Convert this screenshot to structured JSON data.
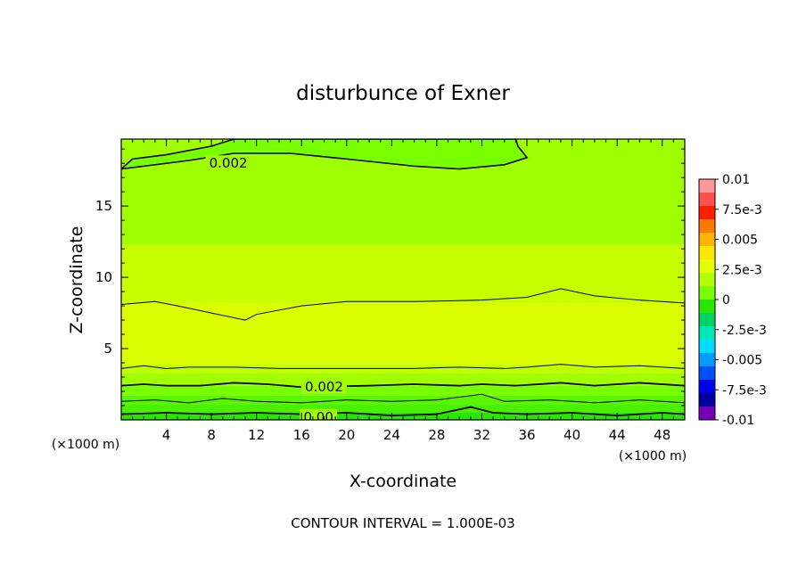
{
  "chart_data": {
    "type": "heatmap",
    "title": "disturbunce of Exner",
    "xlabel": "X-coordinate",
    "ylabel": "Z-coordinate",
    "x_unit_label": "(×1000 m)",
    "y_unit_label": "(×1000 m)",
    "xlim": [
      0,
      50
    ],
    "ylim": [
      0,
      19.7
    ],
    "x_ticks": [
      4,
      8,
      12,
      16,
      20,
      24,
      28,
      32,
      36,
      40,
      44,
      48
    ],
    "x_tick_labels": [
      "4",
      "8",
      "12",
      "16",
      "20",
      "24",
      "28",
      "32",
      "36",
      "40",
      "44",
      "48"
    ],
    "y_ticks": [
      5,
      10,
      15
    ],
    "y_tick_labels": [
      "5",
      "10",
      "15"
    ],
    "footer": "CONTOUR INTERVAL = 1.000E-03",
    "contour_labels": [
      {
        "text": "0.002",
        "x": 9.5,
        "y": 18.0
      },
      {
        "text": "0.002",
        "x": 18.0,
        "y": 2.3
      },
      {
        "text": "0.00",
        "x": 17.5,
        "y": 0.2
      }
    ],
    "colorbar": {
      "labels": [
        "0.01",
        "7.5e-3",
        "0.005",
        "2.5e-3",
        "0",
        "-2.5e-3",
        "-0.005",
        "-7.5e-3",
        "-0.01"
      ],
      "colors": [
        "#ff9898",
        "#ff5050",
        "#ff1e00",
        "#ff7800",
        "#ffb400",
        "#ffe600",
        "#e6ff00",
        "#b4ff00",
        "#78ff00",
        "#28e600",
        "#00d264",
        "#00e6b4",
        "#00dcff",
        "#009cff",
        "#0050ff",
        "#0000e6",
        "#0000a0",
        "#7800b4"
      ]
    },
    "bands": [
      {
        "y_from": 0.0,
        "y_to": 0.55,
        "color": "#28e600"
      },
      {
        "y_from": 0.55,
        "y_to": 1.1,
        "color": "#49f000"
      },
      {
        "y_from": 1.1,
        "y_to": 1.7,
        "color": "#5af500"
      },
      {
        "y_from": 1.7,
        "y_to": 2.4,
        "color": "#78ff00"
      },
      {
        "y_from": 2.4,
        "y_to": 3.3,
        "color": "#a2ff00"
      },
      {
        "y_from": 3.3,
        "y_to": 3.9,
        "color": "#c4ff00"
      },
      {
        "y_from": 3.9,
        "y_to": 8.2,
        "color": "#dcff00"
      },
      {
        "y_from": 8.2,
        "y_to": 12.3,
        "color": "#c8ff00"
      },
      {
        "y_from": 12.3,
        "y_to": 19.7,
        "color": "#a0ff00"
      }
    ],
    "contours": [
      {
        "level": "0.002",
        "points": [
          [
            0,
            8.1
          ],
          [
            3,
            8.3
          ],
          [
            5,
            8.0
          ],
          [
            8,
            7.5
          ],
          [
            11,
            7.0
          ],
          [
            12,
            7.4
          ],
          [
            16,
            8.0
          ],
          [
            20,
            8.3
          ],
          [
            26,
            8.3
          ],
          [
            32,
            8.4
          ],
          [
            36,
            8.6
          ],
          [
            39,
            9.2
          ],
          [
            42,
            8.7
          ],
          [
            46,
            8.4
          ],
          [
            50,
            8.2
          ]
        ]
      },
      {
        "level": "0.002",
        "points": [
          [
            0,
            3.6
          ],
          [
            2,
            3.8
          ],
          [
            4,
            3.6
          ],
          [
            6,
            3.7
          ],
          [
            10,
            3.7
          ],
          [
            14,
            3.6
          ],
          [
            18,
            3.6
          ],
          [
            22,
            3.6
          ],
          [
            26,
            3.6
          ],
          [
            30,
            3.7
          ],
          [
            34,
            3.6
          ],
          [
            36,
            3.7
          ],
          [
            39,
            3.9
          ],
          [
            42,
            3.7
          ],
          [
            46,
            3.8
          ],
          [
            50,
            3.6
          ]
        ]
      },
      {
        "level": "0.002",
        "points": [
          [
            0,
            2.4
          ],
          [
            2,
            2.5
          ],
          [
            4,
            2.4
          ],
          [
            7,
            2.4
          ],
          [
            10,
            2.6
          ],
          [
            13,
            2.5
          ],
          [
            16,
            2.3
          ],
          [
            22,
            2.4
          ],
          [
            26,
            2.5
          ],
          [
            30,
            2.4
          ],
          [
            32,
            2.5
          ],
          [
            35,
            2.4
          ],
          [
            39,
            2.6
          ],
          [
            42,
            2.4
          ],
          [
            46,
            2.6
          ],
          [
            50,
            2.4
          ]
        ]
      },
      {
        "level": "0.002",
        "points": [
          [
            0,
            1.3
          ],
          [
            3,
            1.4
          ],
          [
            6,
            1.2
          ],
          [
            9,
            1.5
          ],
          [
            12,
            1.3
          ],
          [
            16,
            1.2
          ],
          [
            20,
            1.4
          ],
          [
            24,
            1.3
          ],
          [
            28,
            1.4
          ],
          [
            32,
            1.8
          ],
          [
            34,
            1.3
          ],
          [
            38,
            1.4
          ],
          [
            42,
            1.2
          ],
          [
            46,
            1.4
          ],
          [
            50,
            1.2
          ]
        ]
      },
      {
        "level": "0.00",
        "points": [
          [
            0,
            0.4
          ],
          [
            4,
            0.5
          ],
          [
            8,
            0.4
          ],
          [
            12,
            0.5
          ],
          [
            16,
            0.4
          ],
          [
            20,
            0.5
          ],
          [
            24,
            0.3
          ],
          [
            28,
            0.4
          ],
          [
            31,
            0.9
          ],
          [
            33,
            0.5
          ],
          [
            36,
            0.4
          ],
          [
            40,
            0.5
          ],
          [
            44,
            0.3
          ],
          [
            48,
            0.5
          ],
          [
            50,
            0.4
          ]
        ]
      }
    ],
    "top_region": [
      [
        0,
        17.6
      ],
      [
        1,
        18.3
      ],
      [
        4,
        18.6
      ],
      [
        8,
        19.2
      ],
      [
        10,
        19.7
      ],
      [
        35,
        19.7
      ],
      [
        35.2,
        19.2
      ],
      [
        36,
        18.4
      ],
      [
        34,
        17.9
      ],
      [
        30,
        17.6
      ],
      [
        26,
        17.8
      ],
      [
        20,
        18.3
      ],
      [
        15,
        18.7
      ],
      [
        10,
        18.7
      ],
      [
        6,
        18.2
      ],
      [
        2,
        17.8
      ],
      [
        0,
        17.6
      ]
    ]
  }
}
